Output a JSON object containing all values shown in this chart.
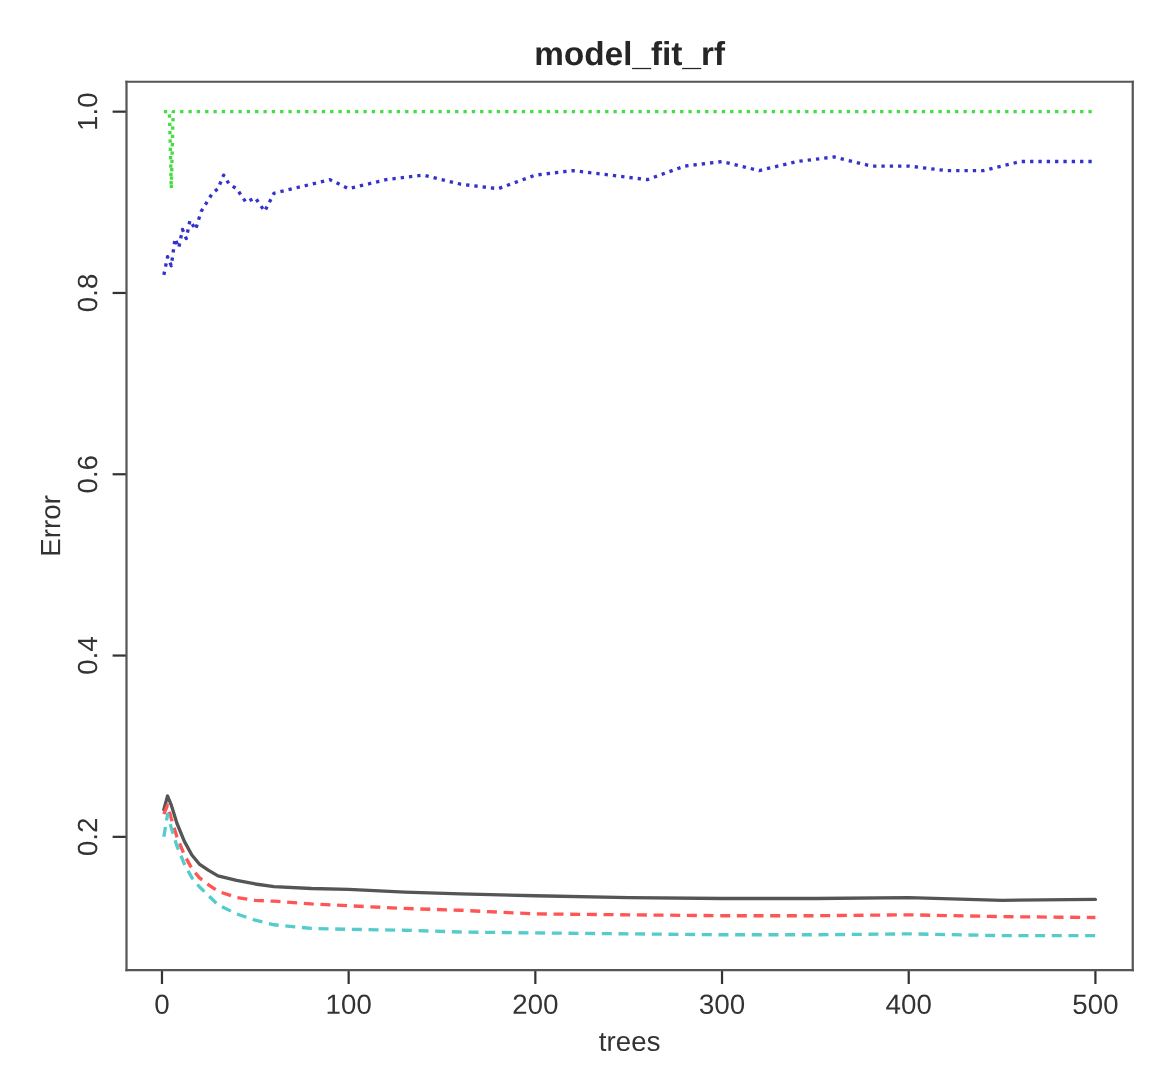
{
  "chart_data": {
    "type": "line",
    "title": "model_fit_rf",
    "xlabel": "trees",
    "ylabel": "Error",
    "xlim": [
      -19,
      520
    ],
    "ylim": [
      0.053,
      1.033
    ],
    "xticks": [
      0,
      100,
      200,
      300,
      400,
      500
    ],
    "yticks": [
      {
        "value": 0.2,
        "label": "0.2"
      },
      {
        "value": 0.4,
        "label": "0.4"
      },
      {
        "value": 0.6,
        "label": "0.6"
      },
      {
        "value": 0.8,
        "label": "0.8"
      },
      {
        "value": 1.0,
        "label": "1.0"
      }
    ],
    "grid": false,
    "legend": false,
    "marker": "none",
    "series": [
      {
        "color": "#555555",
        "line_style": "solid",
        "x": [
          1,
          3,
          5,
          8,
          12,
          16,
          20,
          25,
          30,
          40,
          50,
          60,
          80,
          100,
          130,
          160,
          200,
          250,
          300,
          350,
          400,
          450,
          500
        ],
        "values": [
          0.23,
          0.245,
          0.235,
          0.215,
          0.195,
          0.18,
          0.17,
          0.163,
          0.157,
          0.152,
          0.148,
          0.145,
          0.143,
          0.142,
          0.139,
          0.137,
          0.135,
          0.133,
          0.132,
          0.132,
          0.133,
          0.13,
          0.131
        ]
      },
      {
        "color": "#ff5555",
        "line_style": "dashed",
        "x": [
          1,
          3,
          5,
          8,
          12,
          16,
          20,
          25,
          30,
          40,
          50,
          60,
          80,
          100,
          130,
          160,
          200,
          250,
          300,
          350,
          400,
          450,
          500
        ],
        "values": [
          0.225,
          0.235,
          0.22,
          0.2,
          0.18,
          0.165,
          0.155,
          0.147,
          0.14,
          0.133,
          0.13,
          0.129,
          0.126,
          0.124,
          0.121,
          0.119,
          0.115,
          0.114,
          0.113,
          0.113,
          0.114,
          0.112,
          0.111
        ]
      },
      {
        "color": "#44dd44",
        "line_style": "dotted",
        "x": [
          1,
          4,
          5,
          6,
          500
        ],
        "values": [
          1.0,
          1.0,
          0.915,
          1.0,
          1.0
        ]
      },
      {
        "color": "#3333cc",
        "line_style": "dotted",
        "x": [
          1,
          3,
          5,
          7,
          9,
          11,
          13,
          15,
          18,
          21,
          24,
          27,
          30,
          33,
          36,
          40,
          45,
          50,
          55,
          60,
          70,
          80,
          90,
          100,
          120,
          140,
          160,
          180,
          200,
          220,
          240,
          260,
          280,
          300,
          320,
          340,
          360,
          380,
          400,
          420,
          440,
          460,
          480,
          500
        ],
        "values": [
          0.82,
          0.84,
          0.83,
          0.86,
          0.85,
          0.87,
          0.86,
          0.88,
          0.87,
          0.89,
          0.9,
          0.91,
          0.915,
          0.93,
          0.92,
          0.915,
          0.9,
          0.905,
          0.89,
          0.91,
          0.915,
          0.92,
          0.925,
          0.915,
          0.925,
          0.93,
          0.92,
          0.915,
          0.93,
          0.935,
          0.93,
          0.925,
          0.94,
          0.945,
          0.935,
          0.945,
          0.95,
          0.94,
          0.94,
          0.935,
          0.935,
          0.945,
          0.945,
          0.945
        ]
      },
      {
        "color": "#55cccc",
        "line_style": "dashed",
        "x": [
          1,
          3,
          5,
          8,
          12,
          16,
          20,
          25,
          30,
          40,
          50,
          60,
          80,
          100,
          130,
          160,
          200,
          250,
          300,
          350,
          400,
          450,
          500
        ],
        "values": [
          0.2,
          0.225,
          0.21,
          0.19,
          0.17,
          0.155,
          0.145,
          0.135,
          0.125,
          0.115,
          0.108,
          0.103,
          0.099,
          0.098,
          0.097,
          0.095,
          0.094,
          0.093,
          0.092,
          0.092,
          0.093,
          0.091,
          0.091
        ]
      }
    ]
  }
}
